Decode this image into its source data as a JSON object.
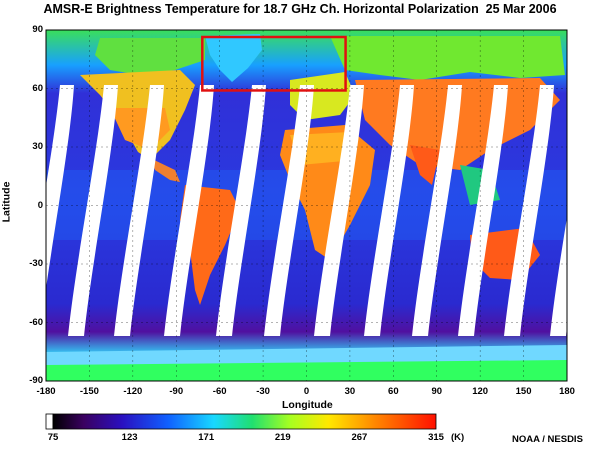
{
  "title": "AMSR-E Brightness Temperature for 18.7 GHz Ch. Horizontal Polarization  25 Mar 2006",
  "axes": {
    "xlabel": "Longitude",
    "ylabel": "Latitude",
    "x_ticks": [
      "-180",
      "-150",
      "-120",
      "-90",
      "-60",
      "-30",
      "0",
      "30",
      "60",
      "90",
      "120",
      "150",
      "180"
    ],
    "y_ticks": [
      "90",
      "60",
      "30",
      "0",
      "-30",
      "-60",
      "-90"
    ],
    "xlim": [
      -180,
      180
    ],
    "ylim": [
      -90,
      90
    ]
  },
  "colorbar": {
    "ticks": [
      "75",
      "123",
      "171",
      "219",
      "267",
      "315"
    ],
    "unit": "(K)",
    "range": [
      75,
      315
    ],
    "colors": [
      "#ffffff",
      "#000000",
      "#5a007a",
      "#1a10c8",
      "#0f6aff",
      "#18d8ff",
      "#20e070",
      "#a8ff20",
      "#ffe800",
      "#ff8800",
      "#ff1000"
    ]
  },
  "highlight_box": {
    "color": "#e01010",
    "lon_range": [
      -72,
      27
    ],
    "lat_range": [
      59,
      90
    ]
  },
  "credit": "NOAA / NESDIS",
  "colors": {
    "ocean": "#2a2ad0",
    "land_warm": "#ff7a10",
    "land_hot": "#ff3a0a",
    "ice": "#30ff60",
    "swath_gap": "#ffffff"
  }
}
